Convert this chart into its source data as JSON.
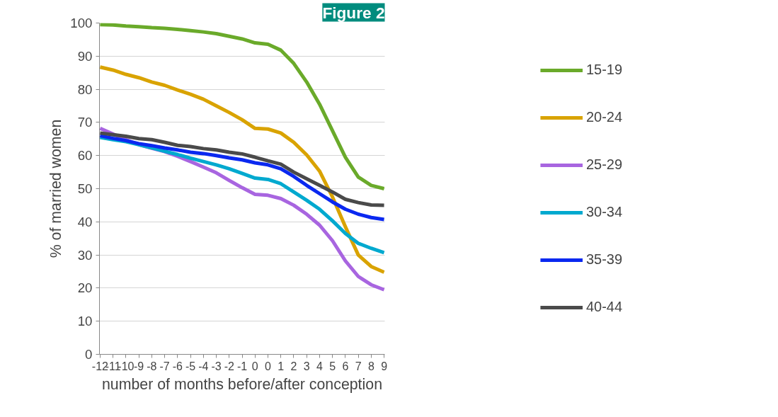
{
  "chart_data": {
    "type": "line",
    "xlabel": "number of months before/after conception",
    "ylabel": "% of married women",
    "categories": [
      "-12",
      "-11",
      "-10",
      "-9",
      "-8",
      "-7",
      "-6",
      "-5",
      "-4",
      "-3",
      "-2",
      "-1",
      "0",
      "0",
      "1",
      "2",
      "3",
      "4",
      "5",
      "6",
      "7",
      "8",
      "9"
    ],
    "ylim": [
      0,
      100
    ],
    "yticks": [
      0,
      10,
      20,
      30,
      40,
      50,
      60,
      70,
      80,
      90,
      100
    ],
    "grid": "y",
    "legend": "right",
    "marker": "none",
    "line_style": "solid",
    "annotations": [
      "Figure 2"
    ],
    "series": [
      {
        "name": "15-19",
        "color": "#6aaa2a",
        "values": [
          99.5,
          99.4,
          99.1,
          98.9,
          98.6,
          98.4,
          98.1,
          97.7,
          97.3,
          96.8,
          96,
          95.2,
          94,
          93.6,
          91.8,
          87.8,
          82.2,
          75.5,
          67.5,
          59.5,
          53.5,
          51,
          50
        ]
      },
      {
        "name": "20-24",
        "color": "#d9a300",
        "values": [
          86.7,
          85.8,
          84.5,
          83.5,
          82.2,
          81.2,
          79.8,
          78.5,
          77,
          75,
          73,
          70.8,
          68.2,
          68,
          66.8,
          64,
          60.2,
          55.3,
          47.5,
          38.5,
          30,
          26.5,
          24.8
        ]
      },
      {
        "name": "25-29",
        "color": "#a865e0",
        "values": [
          68.2,
          66.5,
          64.8,
          63.3,
          62.2,
          61.2,
          59.8,
          58.2,
          56.5,
          54.8,
          52.5,
          50.3,
          48.3,
          48,
          47,
          45,
          42.3,
          39,
          34.3,
          28.2,
          23.5,
          21,
          19.5
        ]
      },
      {
        "name": "30-34",
        "color": "#00a9cf",
        "values": [
          65.5,
          64.8,
          64.2,
          63.3,
          62.3,
          61.3,
          60.3,
          59.2,
          58.2,
          57.2,
          56,
          54.6,
          53.2,
          52.8,
          51.5,
          49,
          46.5,
          43.8,
          40.3,
          36.5,
          33.5,
          32,
          30.7
        ]
      },
      {
        "name": "35-39",
        "color": "#0a28f0",
        "values": [
          66,
          65.2,
          64.5,
          63.6,
          63,
          62.3,
          61.7,
          61,
          60.6,
          60,
          59.3,
          58.7,
          57.8,
          57.2,
          56,
          53.7,
          51,
          48.5,
          46,
          43.8,
          42.3,
          41.3,
          40.7
        ]
      },
      {
        "name": "40-44",
        "color": "#4a4a4a",
        "values": [
          66.8,
          66.3,
          65.8,
          65.1,
          64.8,
          64,
          63.1,
          62.7,
          62.1,
          61.7,
          61,
          60.5,
          59.5,
          58.4,
          57.4,
          55,
          53,
          51,
          49,
          46.8,
          45.8,
          45.1,
          45
        ]
      }
    ]
  }
}
